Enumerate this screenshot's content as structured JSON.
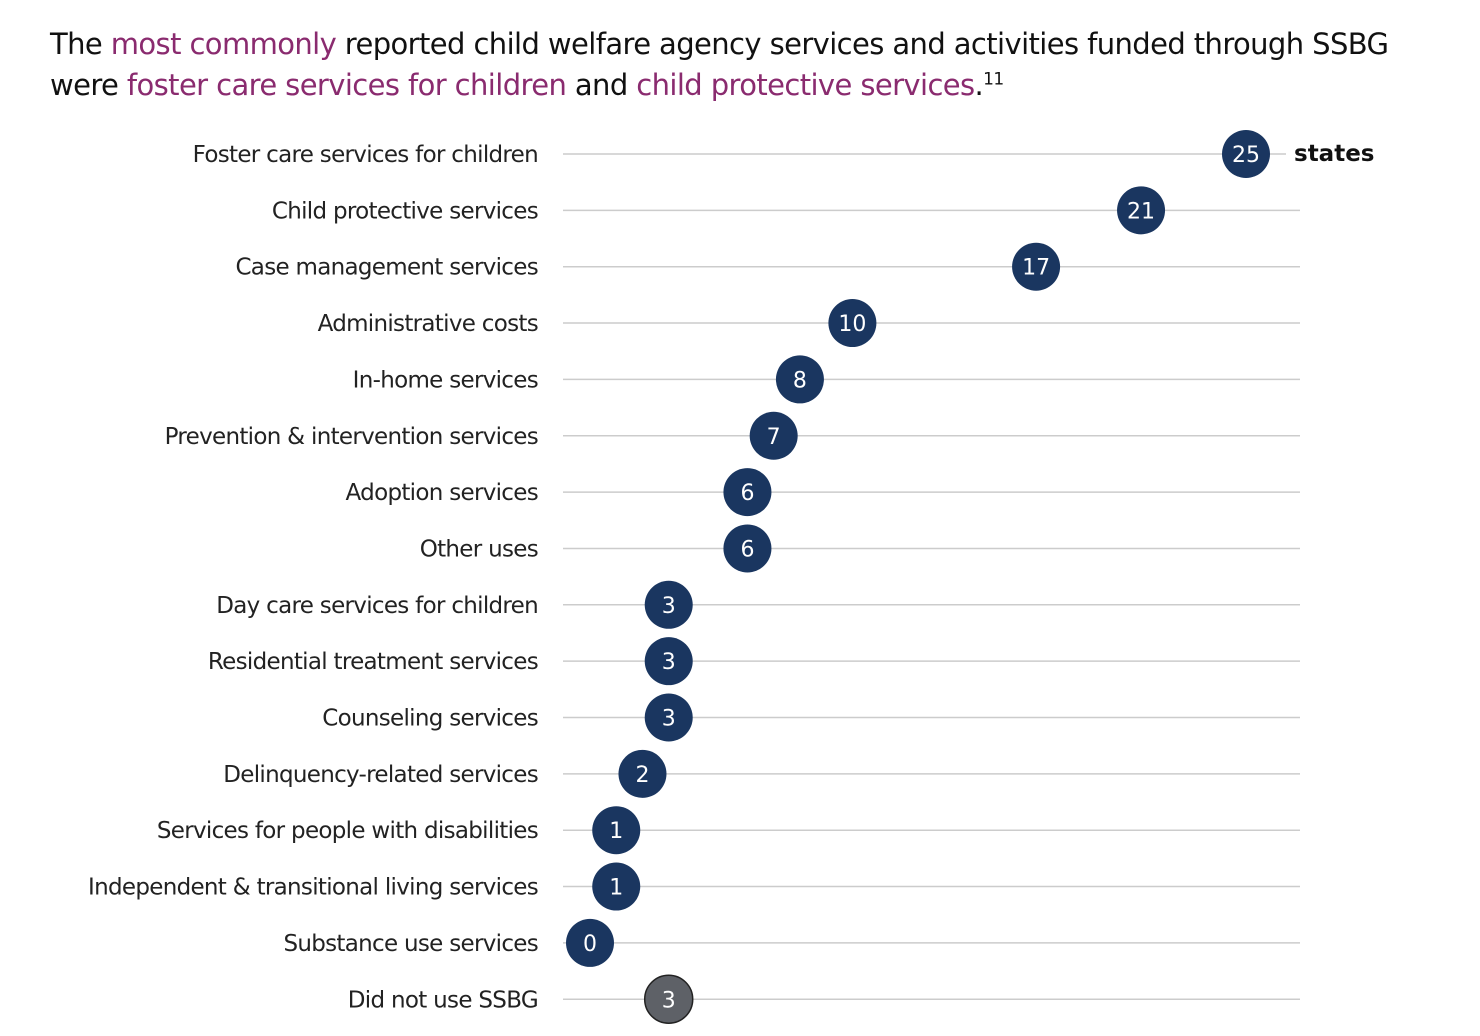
{
  "title": {
    "t1": "The ",
    "h1": "most commonly",
    "t2": " reported child welfare agency services and activities funded through SSBG were ",
    "h2": "foster care services for children",
    "t3": " and ",
    "h3": "child protective services",
    "t4": ".",
    "footnote": "11"
  },
  "chart_data": {
    "type": "dot",
    "unit_label": "states",
    "xlim": [
      0,
      25
    ],
    "grid": false,
    "colors": {
      "primary": "#1a3660",
      "muted": "#5e6167",
      "highlight_text": "#8a2b6f",
      "line": "#cccccc"
    },
    "categories": [
      "Foster care services for children",
      "Child protective services",
      "Case management services",
      "Administrative costs",
      "In-home services",
      "Prevention & intervention services",
      "Adoption services",
      "Other uses",
      "Day care services for children",
      "Residential treatment services",
      "Counseling services",
      "Delinquency-related services",
      "Services for people with disabilities",
      "Independent & transitional living services",
      "Substance use services",
      "Did not use SSBG"
    ],
    "values": [
      25,
      21,
      17,
      10,
      8,
      7,
      6,
      6,
      3,
      3,
      3,
      2,
      1,
      1,
      0,
      3
    ],
    "muted_categories": [
      "Did not use SSBG"
    ]
  }
}
